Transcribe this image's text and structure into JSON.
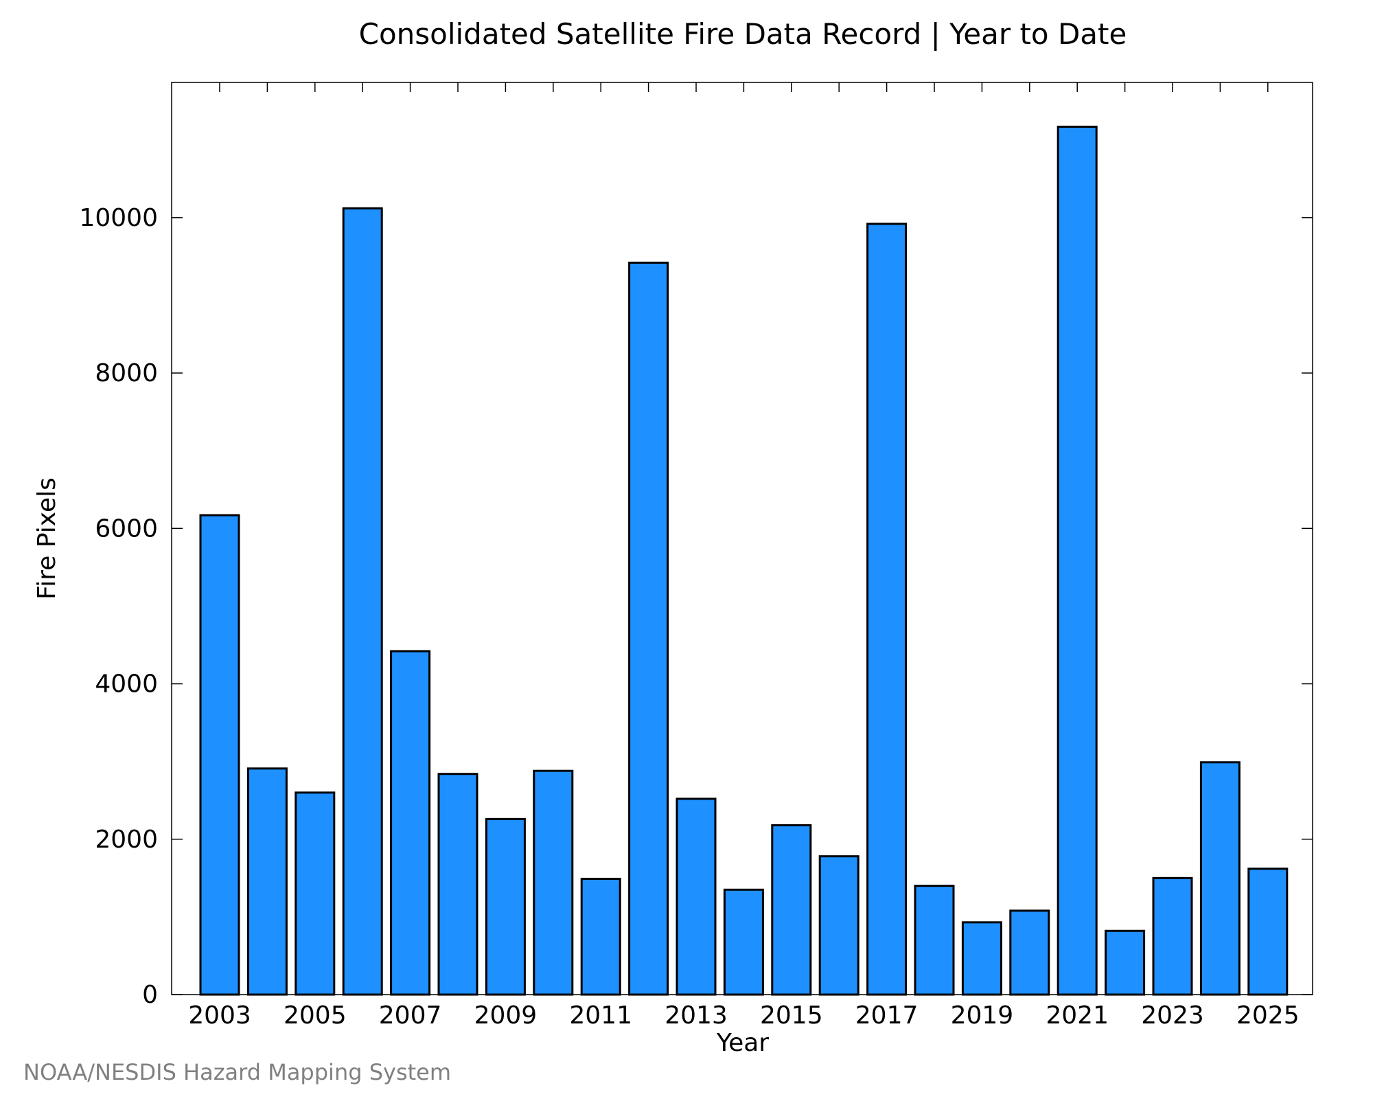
{
  "chart_data": {
    "type": "bar",
    "title": "Consolidated Satellite Fire Data Record | Year to Date",
    "xlabel": "Year",
    "ylabel": "Fire Pixels",
    "categories": [
      "2003",
      "2004",
      "2005",
      "2006",
      "2007",
      "2008",
      "2009",
      "2010",
      "2011",
      "2012",
      "2013",
      "2014",
      "2015",
      "2016",
      "2017",
      "2018",
      "2019",
      "2020",
      "2021",
      "2022",
      "2023",
      "2024",
      "2025"
    ],
    "values": [
      6170,
      2910,
      2600,
      10120,
      4420,
      2840,
      2260,
      2880,
      1490,
      9420,
      2520,
      1350,
      2180,
      1780,
      9920,
      1400,
      930,
      1080,
      11170,
      820,
      1500,
      2990,
      1620
    ],
    "x_tick_labels": [
      "2003",
      "2005",
      "2007",
      "2009",
      "2011",
      "2013",
      "2015",
      "2017",
      "2019",
      "2021",
      "2023",
      "2025"
    ],
    "y_ticks": [
      0,
      2000,
      4000,
      6000,
      8000,
      10000
    ],
    "ylim": [
      0,
      11740
    ],
    "grid": false,
    "bar_color": "#1e90ff",
    "bar_edge_color": "#000000"
  },
  "credit": "NOAA/NESDIS Hazard Mapping System"
}
